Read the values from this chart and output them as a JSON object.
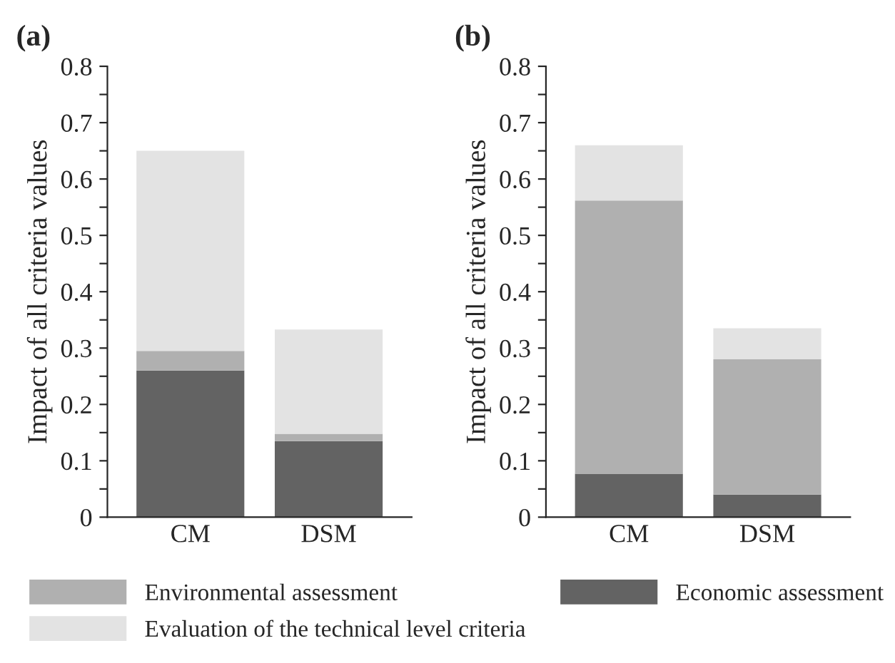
{
  "chart_data": [
    {
      "type": "bar",
      "title": "(a)",
      "ylabel": "Impact of all criteria values",
      "categories": [
        "CM",
        "DSM"
      ],
      "stacked": true,
      "legend": "bottom",
      "ylim": [
        0,
        0.8
      ],
      "yticks": [
        0,
        {
          "value": 0.05,
          "label": null
        },
        0.1,
        {
          "value": 0.15,
          "label": null
        },
        0.2,
        {
          "value": 0.25,
          "label": null
        },
        0.3,
        {
          "value": 0.35,
          "label": null
        },
        0.4,
        {
          "value": 0.45,
          "label": null
        },
        0.5,
        {
          "value": 0.55,
          "label": null
        },
        0.6,
        {
          "value": 0.65,
          "label": null
        },
        0.7,
        {
          "value": 0.75,
          "label": null
        },
        0.8
      ],
      "series": [
        {
          "name": "Economic assessment",
          "color": "#636363",
          "values": [
            0.26,
            0.135
          ]
        },
        {
          "name": "Environmental assessment",
          "color": "#b0b0b0",
          "values": [
            0.035,
            0.013
          ]
        },
        {
          "name": "Evaluation of the technical level criteria",
          "color": "#e3e3e3",
          "values": [
            0.355,
            0.185
          ]
        }
      ]
    },
    {
      "type": "bar",
      "title": "(b)",
      "ylabel": "Impact of all criteria values",
      "categories": [
        "CM",
        "DSM"
      ],
      "stacked": true,
      "ylim": [
        0,
        0.8
      ],
      "yticks": [
        0,
        {
          "value": 0.05,
          "label": null
        },
        0.1,
        {
          "value": 0.15,
          "label": null
        },
        0.2,
        {
          "value": 0.25,
          "label": null
        },
        0.3,
        {
          "value": 0.35,
          "label": null
        },
        0.4,
        {
          "value": 0.45,
          "label": null
        },
        0.5,
        {
          "value": 0.55,
          "label": null
        },
        0.6,
        {
          "value": 0.65,
          "label": null
        },
        0.7,
        {
          "value": 0.75,
          "label": null
        },
        0.8
      ],
      "series": [
        {
          "color": "#636363",
          "values": [
            0.077,
            0.04
          ]
        },
        {
          "color": "#b0b0b0",
          "values": [
            0.485,
            0.24
          ]
        },
        {
          "color": "#e3e3e3",
          "values": [
            0.098,
            0.055
          ]
        }
      ]
    }
  ]
}
